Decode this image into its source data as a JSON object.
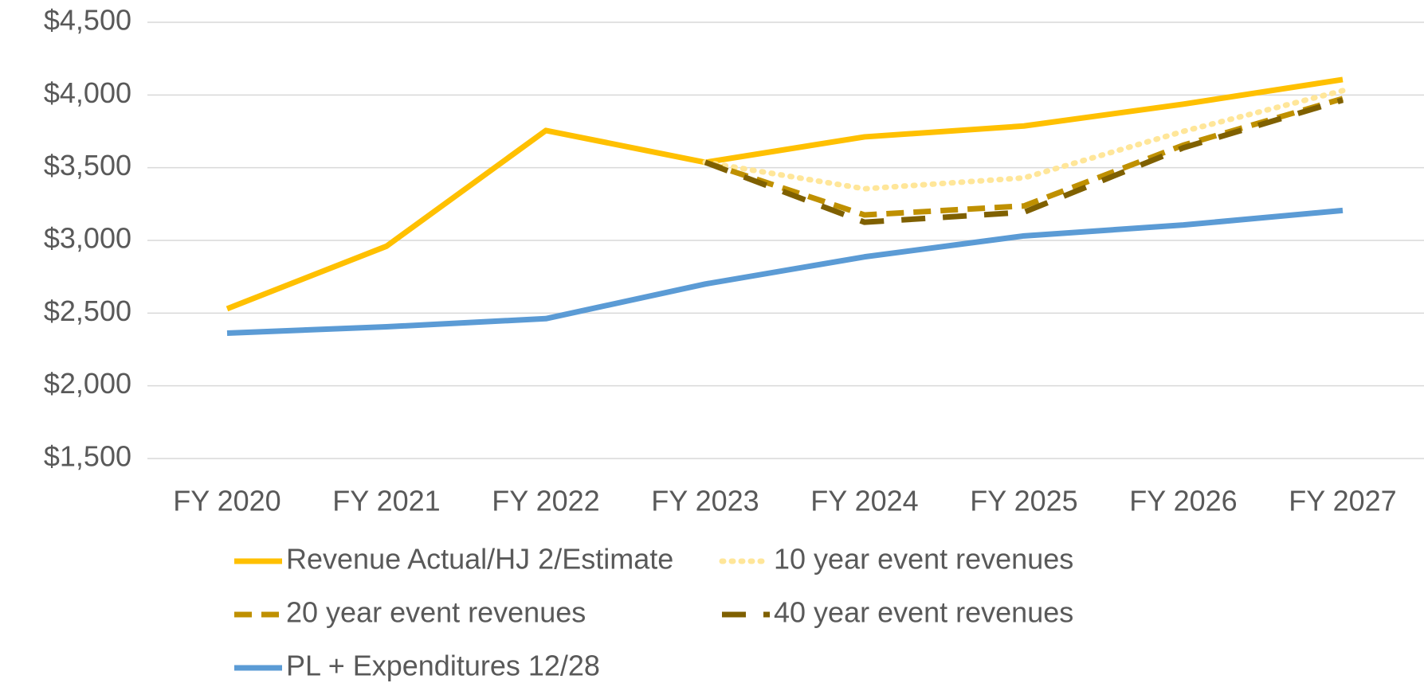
{
  "chart_data": {
    "type": "line",
    "categories": [
      "FY 2020",
      "FY 2021",
      "FY 2022",
      "FY 2023",
      "FY 2024",
      "FY 2025",
      "FY 2026",
      "FY 2027"
    ],
    "series": [
      {
        "name": "Revenue Actual/HJ 2/Estimate",
        "color": "#ffc000",
        "dash": "solid",
        "values": [
          2530,
          2960,
          3756,
          3537,
          3712,
          3787,
          3937,
          4106
        ]
      },
      {
        "name": "10 year event revenues",
        "color": "#ffe699",
        "dash": "dot",
        "values": [
          null,
          null,
          null,
          3537,
          3355,
          3430,
          3750,
          4030
        ]
      },
      {
        "name": "20 year event revenues",
        "color": "#bf9000",
        "dash": "dash",
        "values": [
          null,
          null,
          null,
          3537,
          3175,
          3237,
          3655,
          3975
        ]
      },
      {
        "name": "40 year event revenues",
        "color": "#7f6000",
        "dash": "longdash",
        "values": [
          null,
          null,
          null,
          3537,
          3125,
          3194,
          3637,
          3965
        ]
      },
      {
        "name": "PL + Expenditures 12/28",
        "color": "#5b9bd5",
        "dash": "solid",
        "values": [
          2362,
          2406,
          2462,
          2700,
          2887,
          3031,
          3106,
          3206
        ]
      }
    ],
    "ylim": [
      1500,
      4500
    ],
    "yticks": [
      {
        "value": 1500,
        "label": "$1,500"
      },
      {
        "value": 2000,
        "label": "$2,000"
      },
      {
        "value": 2500,
        "label": "$2,500"
      },
      {
        "value": 3000,
        "label": "$3,000"
      },
      {
        "value": 3500,
        "label": "$3,500"
      },
      {
        "value": 4000,
        "label": "$4,000"
      },
      {
        "value": 4500,
        "label": "$4,500"
      }
    ],
    "grid": true,
    "legend": "bottom"
  }
}
